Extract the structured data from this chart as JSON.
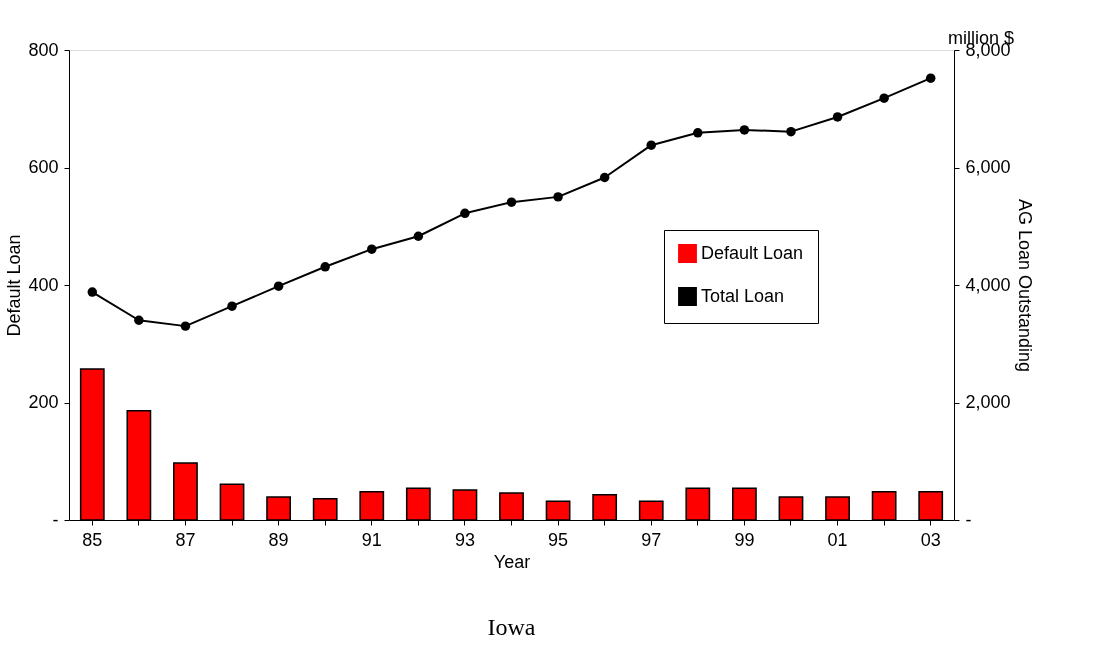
{
  "chart_data": {
    "type": "bar",
    "title": "Iowa",
    "xlabel": "Year",
    "ylabel": "Default Loan",
    "y2label": "AG Loan Outstanding",
    "categories": [
      "85",
      null,
      "87",
      null,
      "89",
      null,
      "91",
      null,
      "93",
      null,
      "95",
      null,
      "97",
      null,
      "99",
      null,
      "01",
      null,
      "03"
    ],
    "series": [
      {
        "name": "Default Loan",
        "color": "#ff0000",
        "values": [
          257,
          186,
          97,
          61,
          39,
          36,
          48,
          54,
          51,
          46,
          32,
          43,
          32,
          54,
          54,
          39,
          39,
          48,
          48
        ]
      },
      {
        "name": "Total Loan",
        "type": "line",
        "axis": "y2",
        "color": "#000000",
        "marker": "circle",
        "line_style": "solid",
        "values": [
          3880,
          3400,
          3300,
          3640,
          3980,
          4310,
          4610,
          4830,
          5220,
          5410,
          5500,
          5830,
          6380,
          6590,
          6640,
          6610,
          6860,
          7180,
          7520
        ]
      }
    ],
    "ylim": [
      0,
      800
    ],
    "yticks": [
      {
        "value": 0,
        "label": "-"
      },
      200,
      400,
      600,
      800
    ],
    "y2lim": [
      0,
      8000
    ],
    "y2ticks": [
      {
        "value": 0,
        "label": "-"
      },
      {
        "value": 2000,
        "label": "2,000"
      },
      {
        "value": 4000,
        "label": "4,000"
      },
      {
        "value": 6000,
        "label": "6,000"
      },
      {
        "value": 8000,
        "label": "8,000"
      }
    ],
    "annotations": [
      "million $"
    ],
    "legend": "right",
    "grid": false
  }
}
